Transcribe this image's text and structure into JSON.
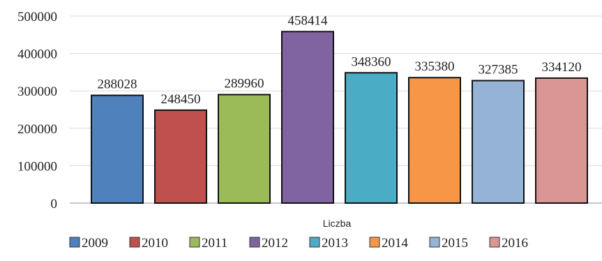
{
  "chart_data": {
    "type": "bar",
    "categories": [
      "Liczba"
    ],
    "series": [
      {
        "name": "2009",
        "values": [
          288028
        ],
        "color": "#4f81bd"
      },
      {
        "name": "2010",
        "values": [
          248450
        ],
        "color": "#c0504d"
      },
      {
        "name": "2011",
        "values": [
          289960
        ],
        "color": "#9bbb59"
      },
      {
        "name": "2012",
        "values": [
          458414
        ],
        "color": "#8064a2"
      },
      {
        "name": "2013",
        "values": [
          348360
        ],
        "color": "#4bacc6"
      },
      {
        "name": "2014",
        "values": [
          335380
        ],
        "color": "#f79646"
      },
      {
        "name": "2015",
        "values": [
          327385
        ],
        "color": "#95b3d7"
      },
      {
        "name": "2016",
        "values": [
          334120
        ],
        "color": "#d99694"
      }
    ],
    "data_labels": [
      "288028",
      "248450",
      "289960",
      "458414",
      "348360",
      "335380",
      "327385",
      "334120"
    ],
    "y_ticks": [
      "0",
      "100000",
      "200000",
      "300000",
      "400000",
      "500000"
    ],
    "ylim": [
      0,
      500000
    ],
    "grid": true,
    "legend_position": "bottom"
  }
}
